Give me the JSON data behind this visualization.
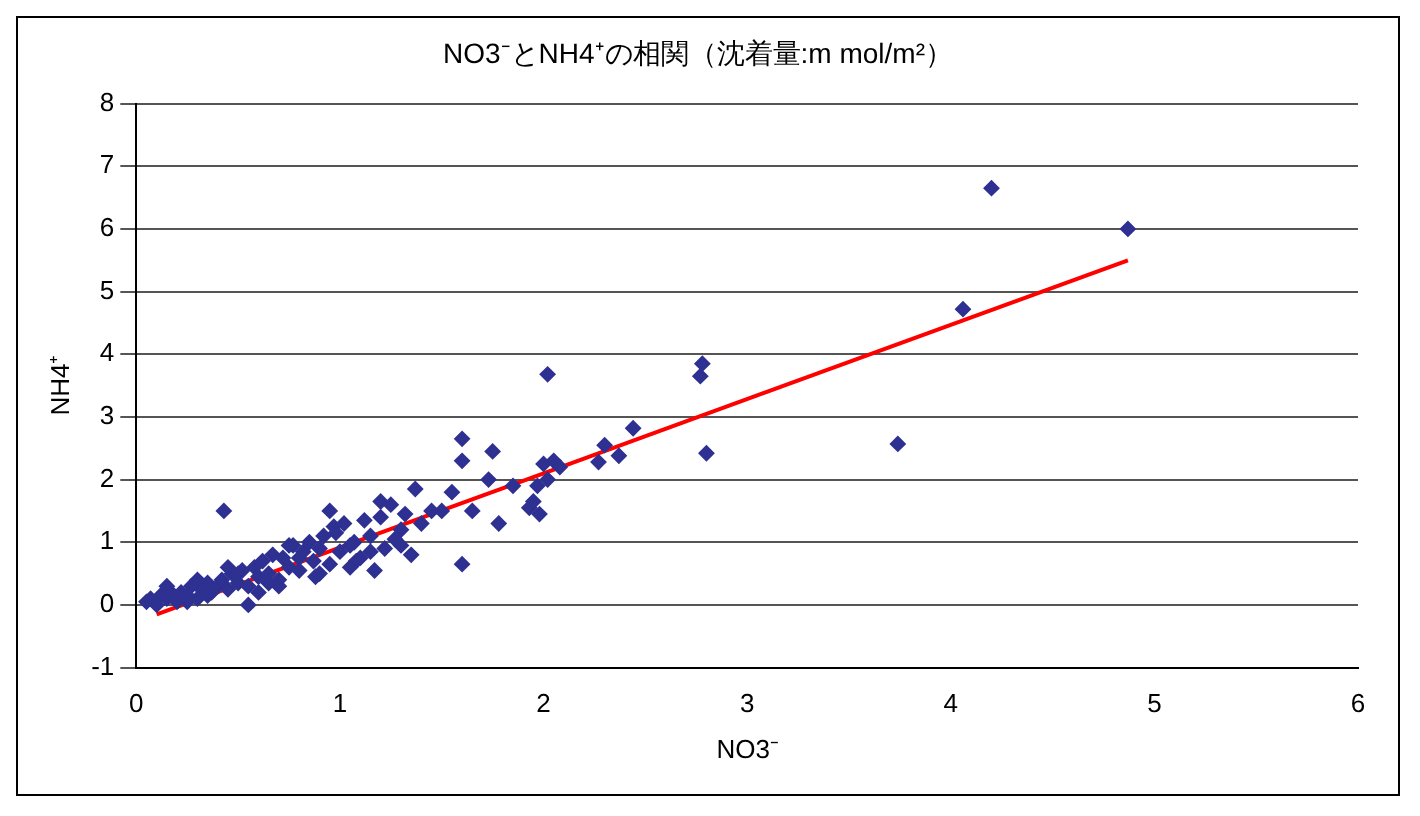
{
  "chart_data": {
    "type": "scatter",
    "title": "NO3⁻とNH4⁺の相関（沈着量:m mol/m²）",
    "xlabel": "NO3⁻",
    "ylabel": "NH4⁺",
    "xlim": [
      0,
      6
    ],
    "xticks": [
      0,
      1,
      2,
      3,
      4,
      5,
      6
    ],
    "ylim": [
      -1,
      8
    ],
    "yticks": [
      -1,
      0,
      1,
      2,
      3,
      4,
      5,
      6,
      7,
      8
    ],
    "grid": "y",
    "legend": false,
    "marker": "diamond",
    "series": [
      {
        "color": "#2e3192",
        "x": [
          0.05,
          0.07,
          0.1,
          0.12,
          0.15,
          0.17,
          0.2,
          0.22,
          0.25,
          0.27,
          0.3,
          0.32,
          0.35,
          0.37,
          0.4,
          0.42,
          0.43,
          0.45,
          0.47,
          0.5,
          0.52,
          0.55,
          0.55,
          0.58,
          0.6,
          0.62,
          0.65,
          0.67,
          0.7,
          0.72,
          0.75,
          0.77,
          0.8,
          0.82,
          0.85,
          0.87,
          0.9,
          0.92,
          0.95,
          0.97,
          1.0,
          1.02,
          1.05,
          1.07,
          1.1,
          1.12,
          1.15,
          1.17,
          1.2,
          1.22,
          1.25,
          1.27,
          1.3,
          1.32,
          1.35,
          1.37,
          1.4,
          1.45,
          1.5,
          1.55,
          1.6,
          1.6,
          1.6,
          1.65,
          1.73,
          1.75,
          1.78,
          1.85,
          1.93,
          1.95,
          1.97,
          1.98,
          2.0,
          2.02,
          2.02,
          2.05,
          2.08,
          2.27,
          2.3,
          2.37,
          2.44,
          2.77,
          2.78,
          2.8,
          3.74,
          4.06,
          4.2,
          4.87,
          0.15,
          0.25,
          0.35,
          0.45,
          0.6,
          0.7,
          0.8,
          0.9,
          0.95,
          1.05,
          1.15,
          0.3,
          0.5,
          0.65,
          0.75,
          0.88,
          0.98,
          1.08,
          1.2,
          1.3
        ],
        "values": [
          0.05,
          0.1,
          0.0,
          0.15,
          0.1,
          0.2,
          0.05,
          0.2,
          0.15,
          0.3,
          0.1,
          0.25,
          0.35,
          0.2,
          0.3,
          0.4,
          1.5,
          0.25,
          0.5,
          0.35,
          0.55,
          0.0,
          0.3,
          0.6,
          0.45,
          0.7,
          0.5,
          0.8,
          0.4,
          0.75,
          0.6,
          0.95,
          0.55,
          0.85,
          1.0,
          0.7,
          0.9,
          1.1,
          0.65,
          1.25,
          0.85,
          1.3,
          0.95,
          1.0,
          0.75,
          1.35,
          1.1,
          0.55,
          1.4,
          0.9,
          1.6,
          1.05,
          1.2,
          1.45,
          0.8,
          1.85,
          1.3,
          1.5,
          1.5,
          1.8,
          0.65,
          2.3,
          2.65,
          1.5,
          2.0,
          2.45,
          1.3,
          1.9,
          1.55,
          1.65,
          1.9,
          1.45,
          2.25,
          2.0,
          3.68,
          2.3,
          2.2,
          2.28,
          2.55,
          2.38,
          2.82,
          3.65,
          3.85,
          2.42,
          2.57,
          4.72,
          6.65,
          6.0,
          0.3,
          0.05,
          0.15,
          0.6,
          0.2,
          0.3,
          0.75,
          0.5,
          1.5,
          0.6,
          0.85,
          0.4,
          0.5,
          0.35,
          0.95,
          0.45,
          1.15,
          0.7,
          1.65,
          0.95
        ]
      },
      {
        "type": "line",
        "marker": "none",
        "color": "#ff0000",
        "x": [
          0.1,
          4.87
        ],
        "values": [
          -0.15,
          5.5
        ]
      }
    ]
  }
}
